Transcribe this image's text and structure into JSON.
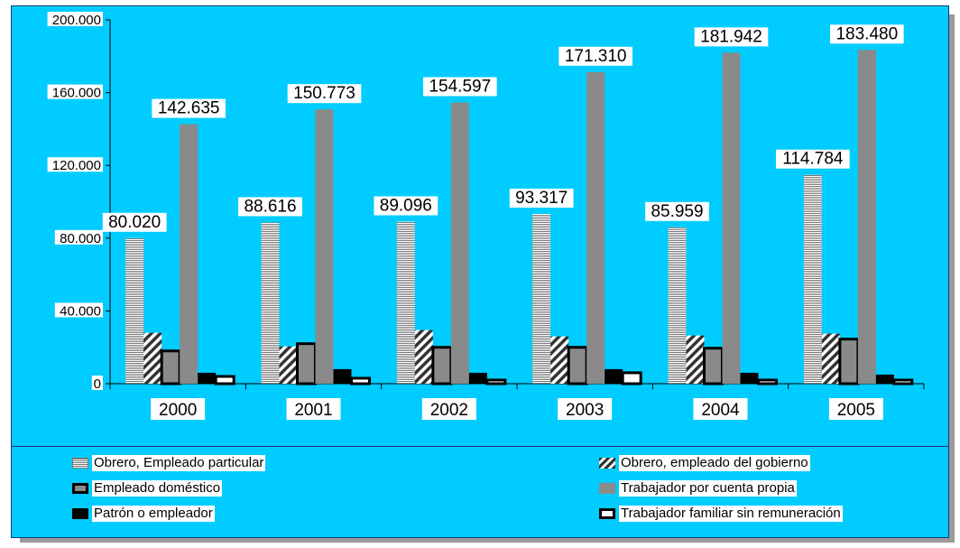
{
  "chart_data": {
    "type": "bar",
    "categories": [
      "2000",
      "2001",
      "2002",
      "2003",
      "2004",
      "2005"
    ],
    "ylim": [
      0,
      200000
    ],
    "yticks": [
      0,
      40000,
      80000,
      120000,
      160000,
      200000
    ],
    "ytick_labels": [
      "0",
      "40.000",
      "80.000",
      "120.000",
      "160.000",
      "200.000"
    ],
    "grid": false,
    "legend_position": "bottom",
    "series": [
      {
        "name": "Obrero, Empleado particular",
        "values": [
          80020,
          88616,
          89096,
          93317,
          85959,
          114784
        ],
        "value_labels": [
          "80.020",
          "88.616",
          "89.096",
          "93.317",
          "85.959",
          "114.784"
        ],
        "pattern": "hstripe",
        "color": "#7a7a7a"
      },
      {
        "name": "Obrero, empleado del gobierno",
        "values": [
          28000,
          20500,
          29500,
          26000,
          26500,
          27500
        ],
        "pattern": "diag",
        "color": "#333333"
      },
      {
        "name": "Empleado doméstico",
        "values": [
          18000,
          22000,
          20000,
          20000,
          19500,
          24500
        ],
        "pattern": "bordered",
        "color": "#8a8a8a"
      },
      {
        "name": "Trabajador por cuenta propia",
        "values": [
          142635,
          150773,
          154597,
          171310,
          181942,
          183480
        ],
        "value_labels": [
          "142.635",
          "150.773",
          "154.597",
          "171.310",
          "181.942",
          "183.480"
        ],
        "pattern": "solid",
        "color": "#8a8a8a"
      },
      {
        "name": "Patrón o empleador",
        "values": [
          6000,
          8000,
          6000,
          8000,
          6000,
          5000
        ],
        "pattern": "solid",
        "color": "#000000"
      },
      {
        "name": "Trabajador familiar sin remuneración",
        "values": [
          4000,
          3000,
          2000,
          6000,
          2000,
          2000
        ],
        "pattern": "outline",
        "color": "#ffffff"
      }
    ]
  }
}
